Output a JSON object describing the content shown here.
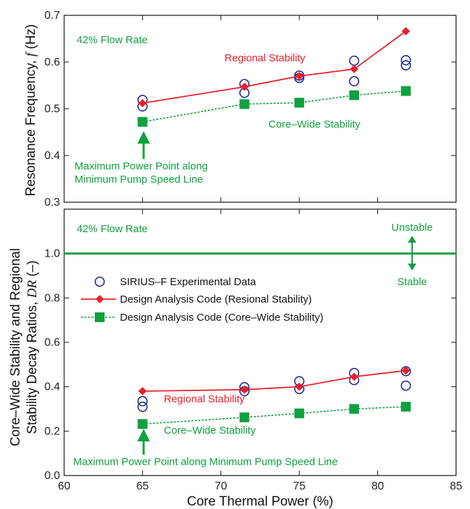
{
  "chart_data": [
    {
      "type": "line",
      "panel": "top",
      "ylabel": "Resonance Frequency, f (Hz)",
      "ylabel_text": "Resonance Frequency,",
      "ylabel_var": "f",
      "ylabel_unit": "(Hz)",
      "xlim": [
        60,
        85
      ],
      "ylim": [
        0.3,
        0.7
      ],
      "yticks": [
        "0.3",
        "0.4",
        "0.5",
        "0.6",
        "0.7"
      ],
      "grid": false,
      "series": [
        {
          "name": "SIRIUS–F Experimental Data",
          "style": "open-circle",
          "x": [
            65,
            65,
            71.5,
            71.5,
            75,
            75,
            78.5,
            78.5,
            81.8,
            81.8
          ],
          "y": [
            0.519,
            0.505,
            0.553,
            0.534,
            0.571,
            0.566,
            0.603,
            0.559,
            0.604,
            0.593
          ]
        },
        {
          "name": "Design Analysis Code (Resional Stability)",
          "style": "red-diamond-line",
          "x": [
            65,
            71.5,
            75,
            78.5,
            81.8
          ],
          "y": [
            0.512,
            0.547,
            0.57,
            0.585,
            0.666
          ]
        },
        {
          "name": "Design Analysis Code (Core–Wide Stability)",
          "style": "green-square-dashed",
          "x": [
            65,
            71.5,
            75,
            78.5,
            81.8
          ],
          "y": [
            0.472,
            0.51,
            0.513,
            0.529,
            0.538
          ]
        }
      ],
      "annotations": {
        "flow_rate": "42% Flow Rate",
        "regional": "Regional Stability",
        "core_wide": "Core–Wide Stability",
        "max_point_line1": "Maximum Power Point along",
        "max_point_line2": "Minimum Pump Speed Line"
      }
    },
    {
      "type": "line",
      "panel": "bottom",
      "ylabel": "Core–Wide Stability and Regional Stability Decay Ratios, DR (–)",
      "ylabel_line1": "Core–Wide Stability and Regional",
      "ylabel_line2_text": "Stability Decay Ratios,",
      "ylabel_var": "DR",
      "ylabel_unit": "(–)",
      "xlabel": "Core Thermal Power (%)",
      "xlim": [
        60,
        85
      ],
      "ylim": [
        0.0,
        1.2
      ],
      "xticks": [
        "60",
        "65",
        "70",
        "75",
        "80",
        "85"
      ],
      "yticks": [
        "0.0",
        "0.2",
        "0.4",
        "0.6",
        "0.8",
        "1.0"
      ],
      "grid": false,
      "reference_line": 1.0,
      "legend_position": "center-left",
      "series": [
        {
          "name": "SIRIUS–F Experimental Data",
          "style": "open-circle",
          "x": [
            65,
            65,
            71.5,
            71.5,
            75,
            75,
            78.5,
            78.5,
            81.8,
            81.8
          ],
          "y": [
            0.335,
            0.31,
            0.398,
            0.38,
            0.425,
            0.39,
            0.462,
            0.43,
            0.47,
            0.405
          ]
        },
        {
          "name": "Design Analysis Code (Resional Stability)",
          "style": "red-diamond-line",
          "x": [
            65,
            71.5,
            75,
            78.5,
            81.8
          ],
          "y": [
            0.38,
            0.387,
            0.4,
            0.445,
            0.473
          ]
        },
        {
          "name": "Design Analysis Code (Core–Wide Stability)",
          "style": "green-square-dashed",
          "x": [
            65,
            71.5,
            75,
            78.5,
            81.8
          ],
          "y": [
            0.232,
            0.262,
            0.28,
            0.3,
            0.31
          ]
        }
      ],
      "annotations": {
        "flow_rate": "42% Flow Rate",
        "unstable": "Unstable",
        "stable": "Stable",
        "regional": "Regional Stability",
        "core_wide": "Core–Wide Stability",
        "max_point": "Maximum Power Point along Minimum Pump Speed Line"
      }
    }
  ],
  "colors": {
    "experimental": "#1f2a8c",
    "regional": "#e8202a",
    "core_wide": "#10a040",
    "axis": "#111111"
  }
}
